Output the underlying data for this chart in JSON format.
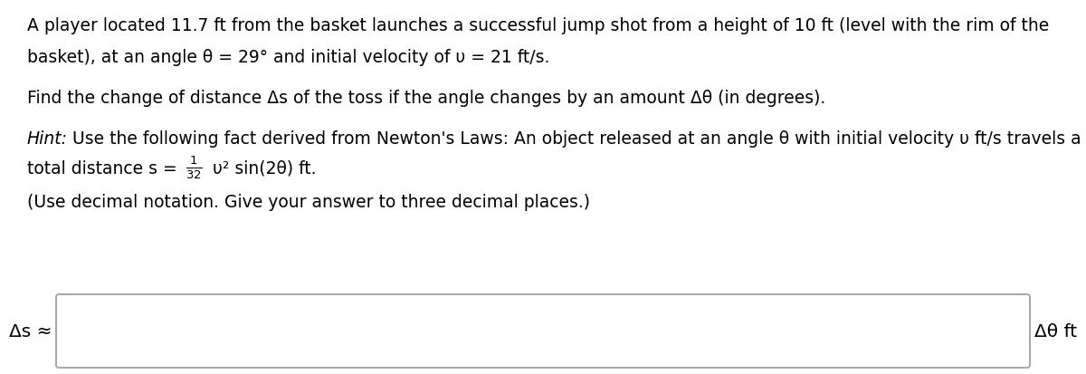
{
  "background_color": "#ffffff",
  "text_color": "#000000",
  "line1": "A player located 11.7 ft from the basket launches a successful jump shot from a height of 10 ft (level with the rim of the",
  "line2": "basket), at an angle θ = 29° and initial velocity of υ = 21 ft/s.",
  "line3": "Find the change of distance Δs of the toss if the angle changes by an amount Δθ (in degrees).",
  "line4a": " Use the following fact derived from Newton's Laws: An object released at an angle θ with initial velocity υ ft/s travels a",
  "line5": "(Use decimal notation. Give your answer to three decimal places.)",
  "label_left": "Δs ≈",
  "label_right": "Δθ ft",
  "fontsize_body": 13.5
}
